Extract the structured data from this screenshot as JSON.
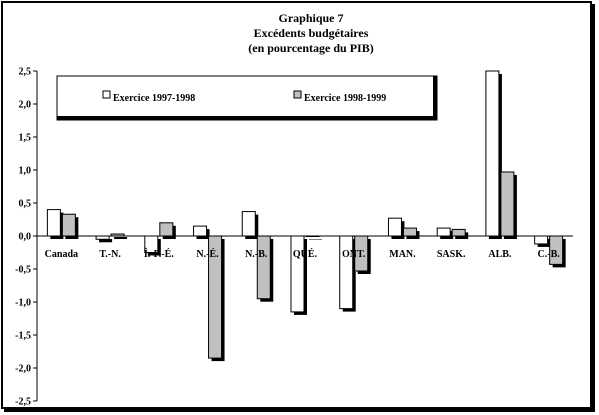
{
  "chart_data": {
    "type": "bar",
    "title": [
      "Graphique 7",
      "Excédents budgétaires",
      "(en pourcentage du PIB)"
    ],
    "xlabel": "",
    "ylabel": "",
    "ylim": [
      -2.5,
      2.5
    ],
    "yticks": [
      "2,5",
      "2,0",
      "1,5",
      "1,0",
      "0,5",
      "0,0",
      "-0,5",
      "-1,0",
      "-1,5",
      "-2,0",
      "-2,5"
    ],
    "ytick_values": [
      2.5,
      2.0,
      1.5,
      1.0,
      0.5,
      0.0,
      -0.5,
      -1.0,
      -1.5,
      -2.0,
      -2.5
    ],
    "grid": false,
    "legend_position": "top",
    "categories": [
      "Canada",
      "T.-N.",
      "Î.-P.-É.",
      "N.-É.",
      "N.-B.",
      "QUÉ.",
      "ONT.",
      "MAN.",
      "SASK.",
      "ALB.",
      "C.-B."
    ],
    "series": [
      {
        "name": "Exercice 1997-1998",
        "color": "#ffffff",
        "values": [
          0.4,
          -0.05,
          -0.25,
          0.15,
          0.37,
          -1.15,
          -1.1,
          0.27,
          0.12,
          2.5,
          -0.12
        ]
      },
      {
        "name": "Exercice 1998-1999",
        "color": "#c0c0c0",
        "values": [
          0.33,
          0.03,
          0.2,
          -1.85,
          -0.95,
          0.0,
          -0.53,
          0.12,
          0.1,
          0.97,
          -0.43
        ]
      }
    ]
  }
}
